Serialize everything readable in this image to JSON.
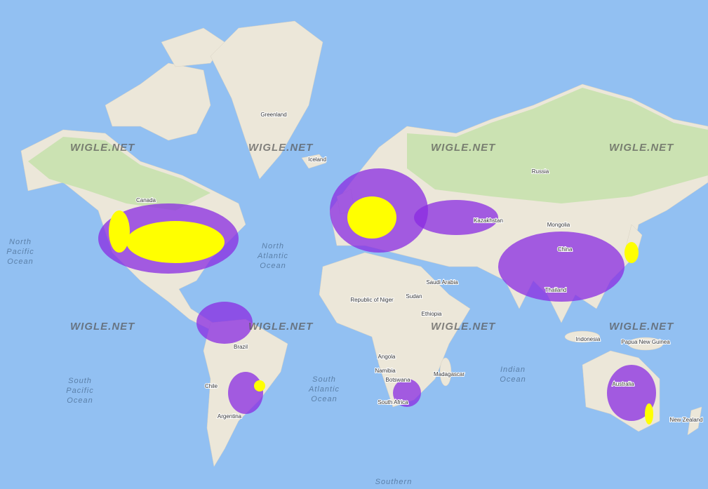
{
  "watermark": "WIGLE.NET",
  "ocean_labels": [
    "North Pacific Ocean",
    "North Atlantic Ocean",
    "South Pacific Ocean",
    "South Atlantic Ocean",
    "Indian Ocean",
    "Southern"
  ],
  "place_labels": [
    "Greenland",
    "Iceland",
    "Canada",
    "Russia",
    "Kazakhstan",
    "Mongolia",
    "China",
    "Thailand",
    "Indonesia",
    "Papua New Guinea",
    "Australia",
    "New Zealand",
    "Brazil",
    "Chile",
    "Argentina",
    "Republic of Niger",
    "Sudan",
    "Ethiopia",
    "Angola",
    "Namibia",
    "Botswana",
    "South Africa",
    "Madagascar",
    "Saudi Arabia"
  ]
}
